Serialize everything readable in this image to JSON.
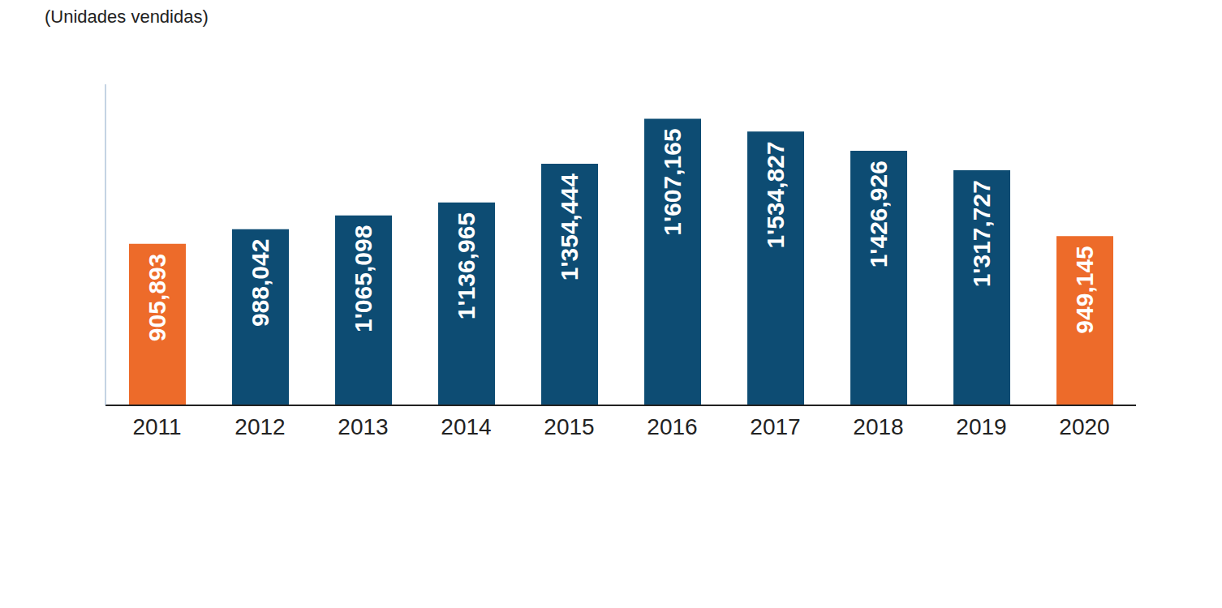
{
  "chart_data": {
    "type": "bar",
    "subtitle": "(Unidades vendidas)",
    "categories": [
      "2011",
      "2012",
      "2013",
      "2014",
      "2015",
      "2016",
      "2017",
      "2018",
      "2019",
      "2020"
    ],
    "values": [
      905893,
      988042,
      1065098,
      1136965,
      1354444,
      1607165,
      1534827,
      1426926,
      1317727,
      949145
    ],
    "value_labels": [
      "905,893",
      "988,042",
      "1'065,098",
      "1'136,965",
      "1'354,444",
      "1'607,165",
      "1'534,827",
      "1'426,926",
      "1'317,727",
      "949,145"
    ],
    "colors": [
      "#ed6b2a",
      "#0d4c73",
      "#0d4c73",
      "#0d4c73",
      "#0d4c73",
      "#0d4c73",
      "#0d4c73",
      "#0d4c73",
      "#0d4c73",
      "#ed6b2a"
    ],
    "ylim": [
      0,
      1800000
    ],
    "data_labels": true,
    "tick_labels": "x"
  }
}
